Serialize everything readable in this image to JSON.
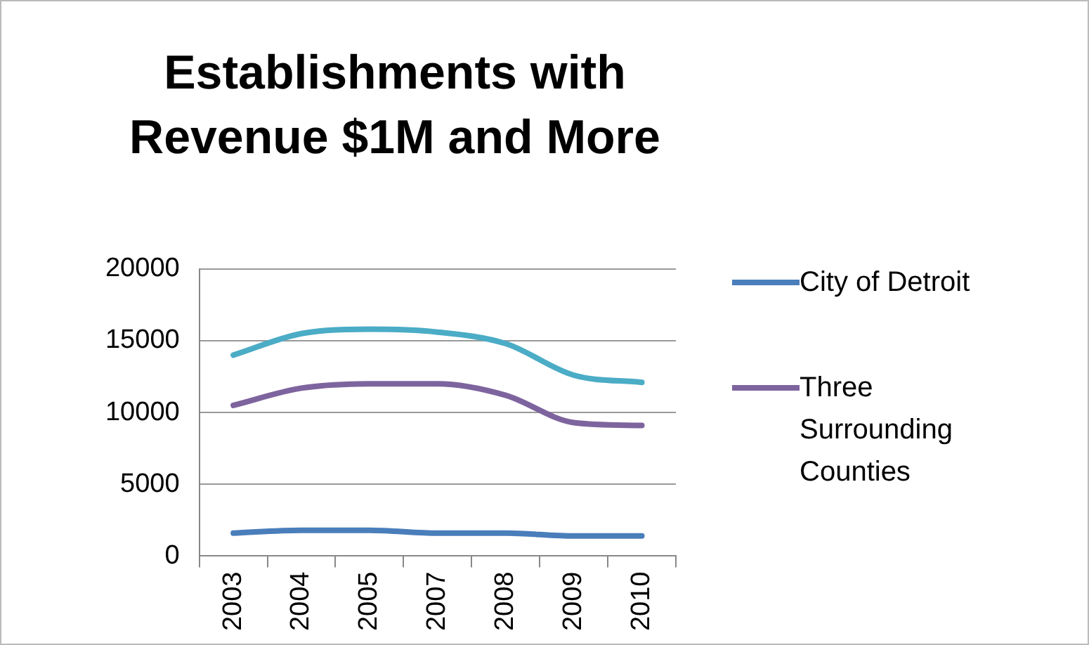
{
  "chart_data": {
    "type": "line",
    "title": "Establishments with Revenue $1M and More",
    "categories": [
      "2003",
      "2004",
      "2005",
      "2007",
      "2008",
      "2009",
      "2010"
    ],
    "series": [
      {
        "color": "#4bacc6",
        "values": [
          14000,
          15500,
          15800,
          15600,
          14800,
          12600,
          12100
        ]
      },
      {
        "name": "City of Detroit",
        "color": "#4a7ebb",
        "values": [
          1600,
          1800,
          1800,
          1600,
          1600,
          1400,
          1400
        ]
      },
      {
        "name": "Three Surrounding Counties",
        "color": "#7e649e",
        "values": [
          10500,
          11700,
          12000,
          12000,
          11200,
          9300,
          9100
        ]
      }
    ],
    "ylim": [
      0,
      20000
    ],
    "yticks": [
      0,
      5000,
      10000,
      15000,
      20000
    ],
    "grid": "y",
    "legend": "right",
    "marker": "none",
    "line_style": "solid"
  }
}
